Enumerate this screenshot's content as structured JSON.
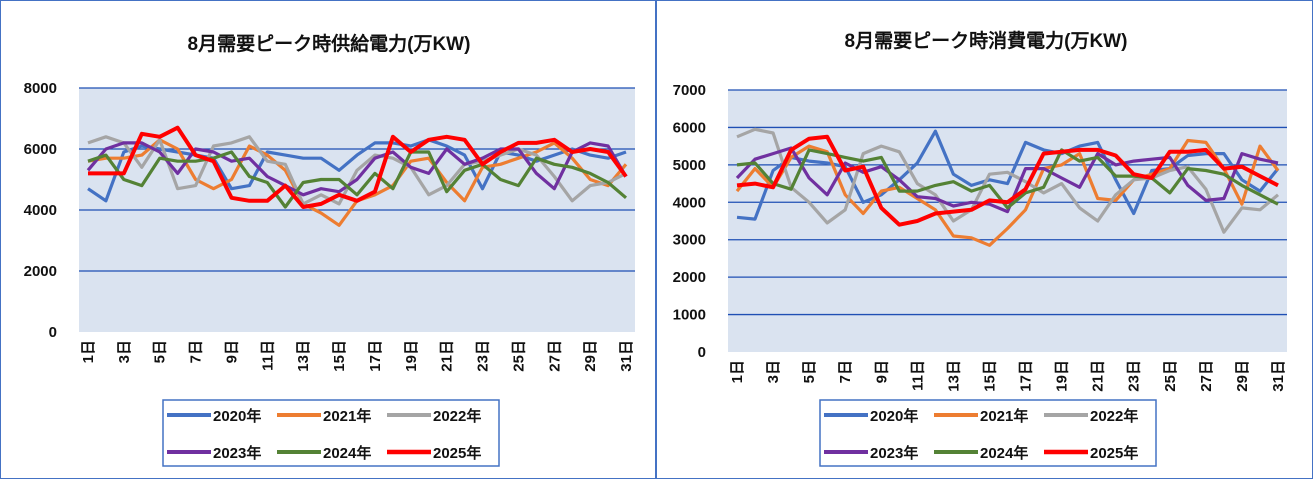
{
  "chart_data": [
    {
      "type": "line",
      "title": "8月需要ピーク時供給電力(万KW)",
      "xlabel": "",
      "ylabel": "",
      "ylim": [
        0,
        8000
      ],
      "yticks": [
        "0",
        "2000",
        "4000",
        "6000",
        "8000"
      ],
      "xtick_labels": [
        "1日",
        "3日",
        "5日",
        "7日",
        "9日",
        "11日",
        "13日",
        "15日",
        "17日",
        "19日",
        "21日",
        "23日",
        "25日",
        "27日",
        "29日",
        "31日"
      ],
      "grid": "horizontal",
      "legend": "bottom",
      "series": [
        {
          "name": "2020年",
          "color": "#4472c4",
          "values": [
            4700,
            4300,
            5900,
            6100,
            6000,
            5900,
            5800,
            5700,
            4700,
            4800,
            5900,
            5800,
            5700,
            5700,
            5300,
            5800,
            6200,
            6200,
            6100,
            6300,
            6100,
            5800,
            4700,
            5900,
            5800,
            5600,
            5800,
            6000,
            5800,
            5700,
            5900
          ]
        },
        {
          "name": "2021年",
          "color": "#ed7d31",
          "values": [
            5600,
            5700,
            5700,
            5800,
            6300,
            6000,
            5000,
            4700,
            5000,
            6100,
            5800,
            5300,
            4200,
            3900,
            3500,
            4300,
            4500,
            4800,
            5600,
            5700,
            4900,
            4300,
            5400,
            5500,
            5700,
            5900,
            6200,
            5700,
            5000,
            4800,
            5500
          ]
        },
        {
          "name": "2022年",
          "color": "#a5a5a5",
          "values": [
            6200,
            6400,
            6200,
            5400,
            6300,
            4700,
            4800,
            6100,
            6200,
            6400,
            5600,
            5500,
            4200,
            4500,
            4200,
            5300,
            5800,
            5700,
            5400,
            4500,
            4800,
            5500,
            5600,
            5800,
            6000,
            5800,
            5100,
            4300,
            4800,
            4900,
            5200
          ]
        },
        {
          "name": "2023年",
          "color": "#7030a0",
          "values": [
            5300,
            6000,
            6200,
            6200,
            5900,
            5200,
            6000,
            5900,
            5600,
            5700,
            5100,
            4800,
            4500,
            4700,
            4600,
            5000,
            5700,
            5900,
            5400,
            5200,
            6000,
            5500,
            5700,
            6000,
            6000,
            5200,
            4700,
            5900,
            6200,
            6100,
            5100
          ]
        },
        {
          "name": "2024年",
          "color": "#548235",
          "values": [
            5600,
            5800,
            5000,
            4800,
            5700,
            5600,
            5600,
            5700,
            5900,
            5100,
            4900,
            4100,
            4900,
            5000,
            5000,
            4500,
            5200,
            4700,
            5900,
            5900,
            4600,
            5300,
            5500,
            5000,
            4800,
            5700,
            5500,
            5400,
            5200,
            4900,
            4400
          ]
        },
        {
          "name": "2025年",
          "color": "#ff0000",
          "values": [
            5200,
            5200,
            5200,
            6500,
            6400,
            6700,
            5800,
            5600,
            4400,
            4300,
            4300,
            4800,
            4100,
            4200,
            4500,
            4300,
            4600,
            6400,
            5900,
            6300,
            6400,
            6300,
            5500,
            5900,
            6200,
            6200,
            6300,
            5900,
            6000,
            5900,
            5100
          ]
        }
      ]
    },
    {
      "type": "line",
      "title": "8月需要ピーク時消費電力(万KW)",
      "xlabel": "",
      "ylabel": "",
      "ylim": [
        0,
        7000
      ],
      "yticks": [
        "0",
        "1000",
        "2000",
        "3000",
        "4000",
        "5000",
        "6000",
        "7000"
      ],
      "xtick_labels": [
        "1日",
        "3日",
        "5日",
        "7日",
        "9日",
        "11日",
        "13日",
        "15日",
        "17日",
        "19日",
        "21日",
        "23日",
        "25日",
        "27日",
        "29日",
        "31日"
      ],
      "grid": "horizontal",
      "legend": "bottom",
      "series": [
        {
          "name": "2020年",
          "color": "#4472c4",
          "values": [
            3600,
            3550,
            4850,
            5200,
            5100,
            5050,
            4950,
            4000,
            4200,
            4600,
            5050,
            5900,
            4750,
            4450,
            4600,
            4500,
            5600,
            5400,
            5300,
            5500,
            5600,
            4600,
            3700,
            4850,
            4900,
            5250,
            5300,
            5300,
            4600,
            4300,
            4900
          ]
        },
        {
          "name": "2021年",
          "color": "#ed7d31",
          "values": [
            4300,
            4900,
            4400,
            5200,
            5500,
            5350,
            4200,
            3700,
            4300,
            4400,
            4100,
            3800,
            3100,
            3050,
            2850,
            3300,
            3800,
            4900,
            5000,
            5300,
            4100,
            4050,
            4600,
            4750,
            4900,
            5650,
            5600,
            4900,
            3950,
            5500,
            4850
          ]
        },
        {
          "name": "2022年",
          "color": "#a5a5a5",
          "values": [
            5750,
            5950,
            5850,
            4400,
            4000,
            3450,
            3800,
            5300,
            5500,
            5350,
            4500,
            4200,
            3500,
            3800,
            4750,
            4800,
            4550,
            4250,
            4500,
            3850,
            3500,
            4200,
            4600,
            4650,
            4850,
            4950,
            4350,
            3200,
            3850,
            3800,
            4200
          ]
        },
        {
          "name": "2023年",
          "color": "#7030a0",
          "values": [
            4650,
            5150,
            5300,
            5450,
            4650,
            4200,
            5050,
            4800,
            4950,
            4600,
            4150,
            4100,
            3900,
            4000,
            3950,
            3750,
            4900,
            4900,
            4650,
            4400,
            5300,
            5000,
            5100,
            5150,
            5200,
            4450,
            4050,
            4100,
            5300,
            5150,
            5050
          ]
        },
        {
          "name": "2024年",
          "color": "#548235",
          "values": [
            5000,
            5050,
            4500,
            4350,
            5400,
            5300,
            5200,
            5100,
            5200,
            4300,
            4300,
            4450,
            4550,
            4300,
            4450,
            3850,
            4250,
            4400,
            5400,
            5100,
            5200,
            4700,
            4700,
            4650,
            4250,
            4900,
            4850,
            4750,
            4450,
            4200,
            3950
          ]
        },
        {
          "name": "2025年",
          "color": "#ff0000",
          "values": [
            4450,
            4500,
            4400,
            5400,
            5700,
            5750,
            4850,
            4950,
            3850,
            3400,
            3500,
            3700,
            3750,
            3800,
            4050,
            4000,
            4350,
            5300,
            5350,
            5400,
            5400,
            5250,
            4750,
            4650,
            5350,
            5350,
            5400,
            4900,
            4950,
            4700,
            4450
          ]
        }
      ]
    }
  ]
}
